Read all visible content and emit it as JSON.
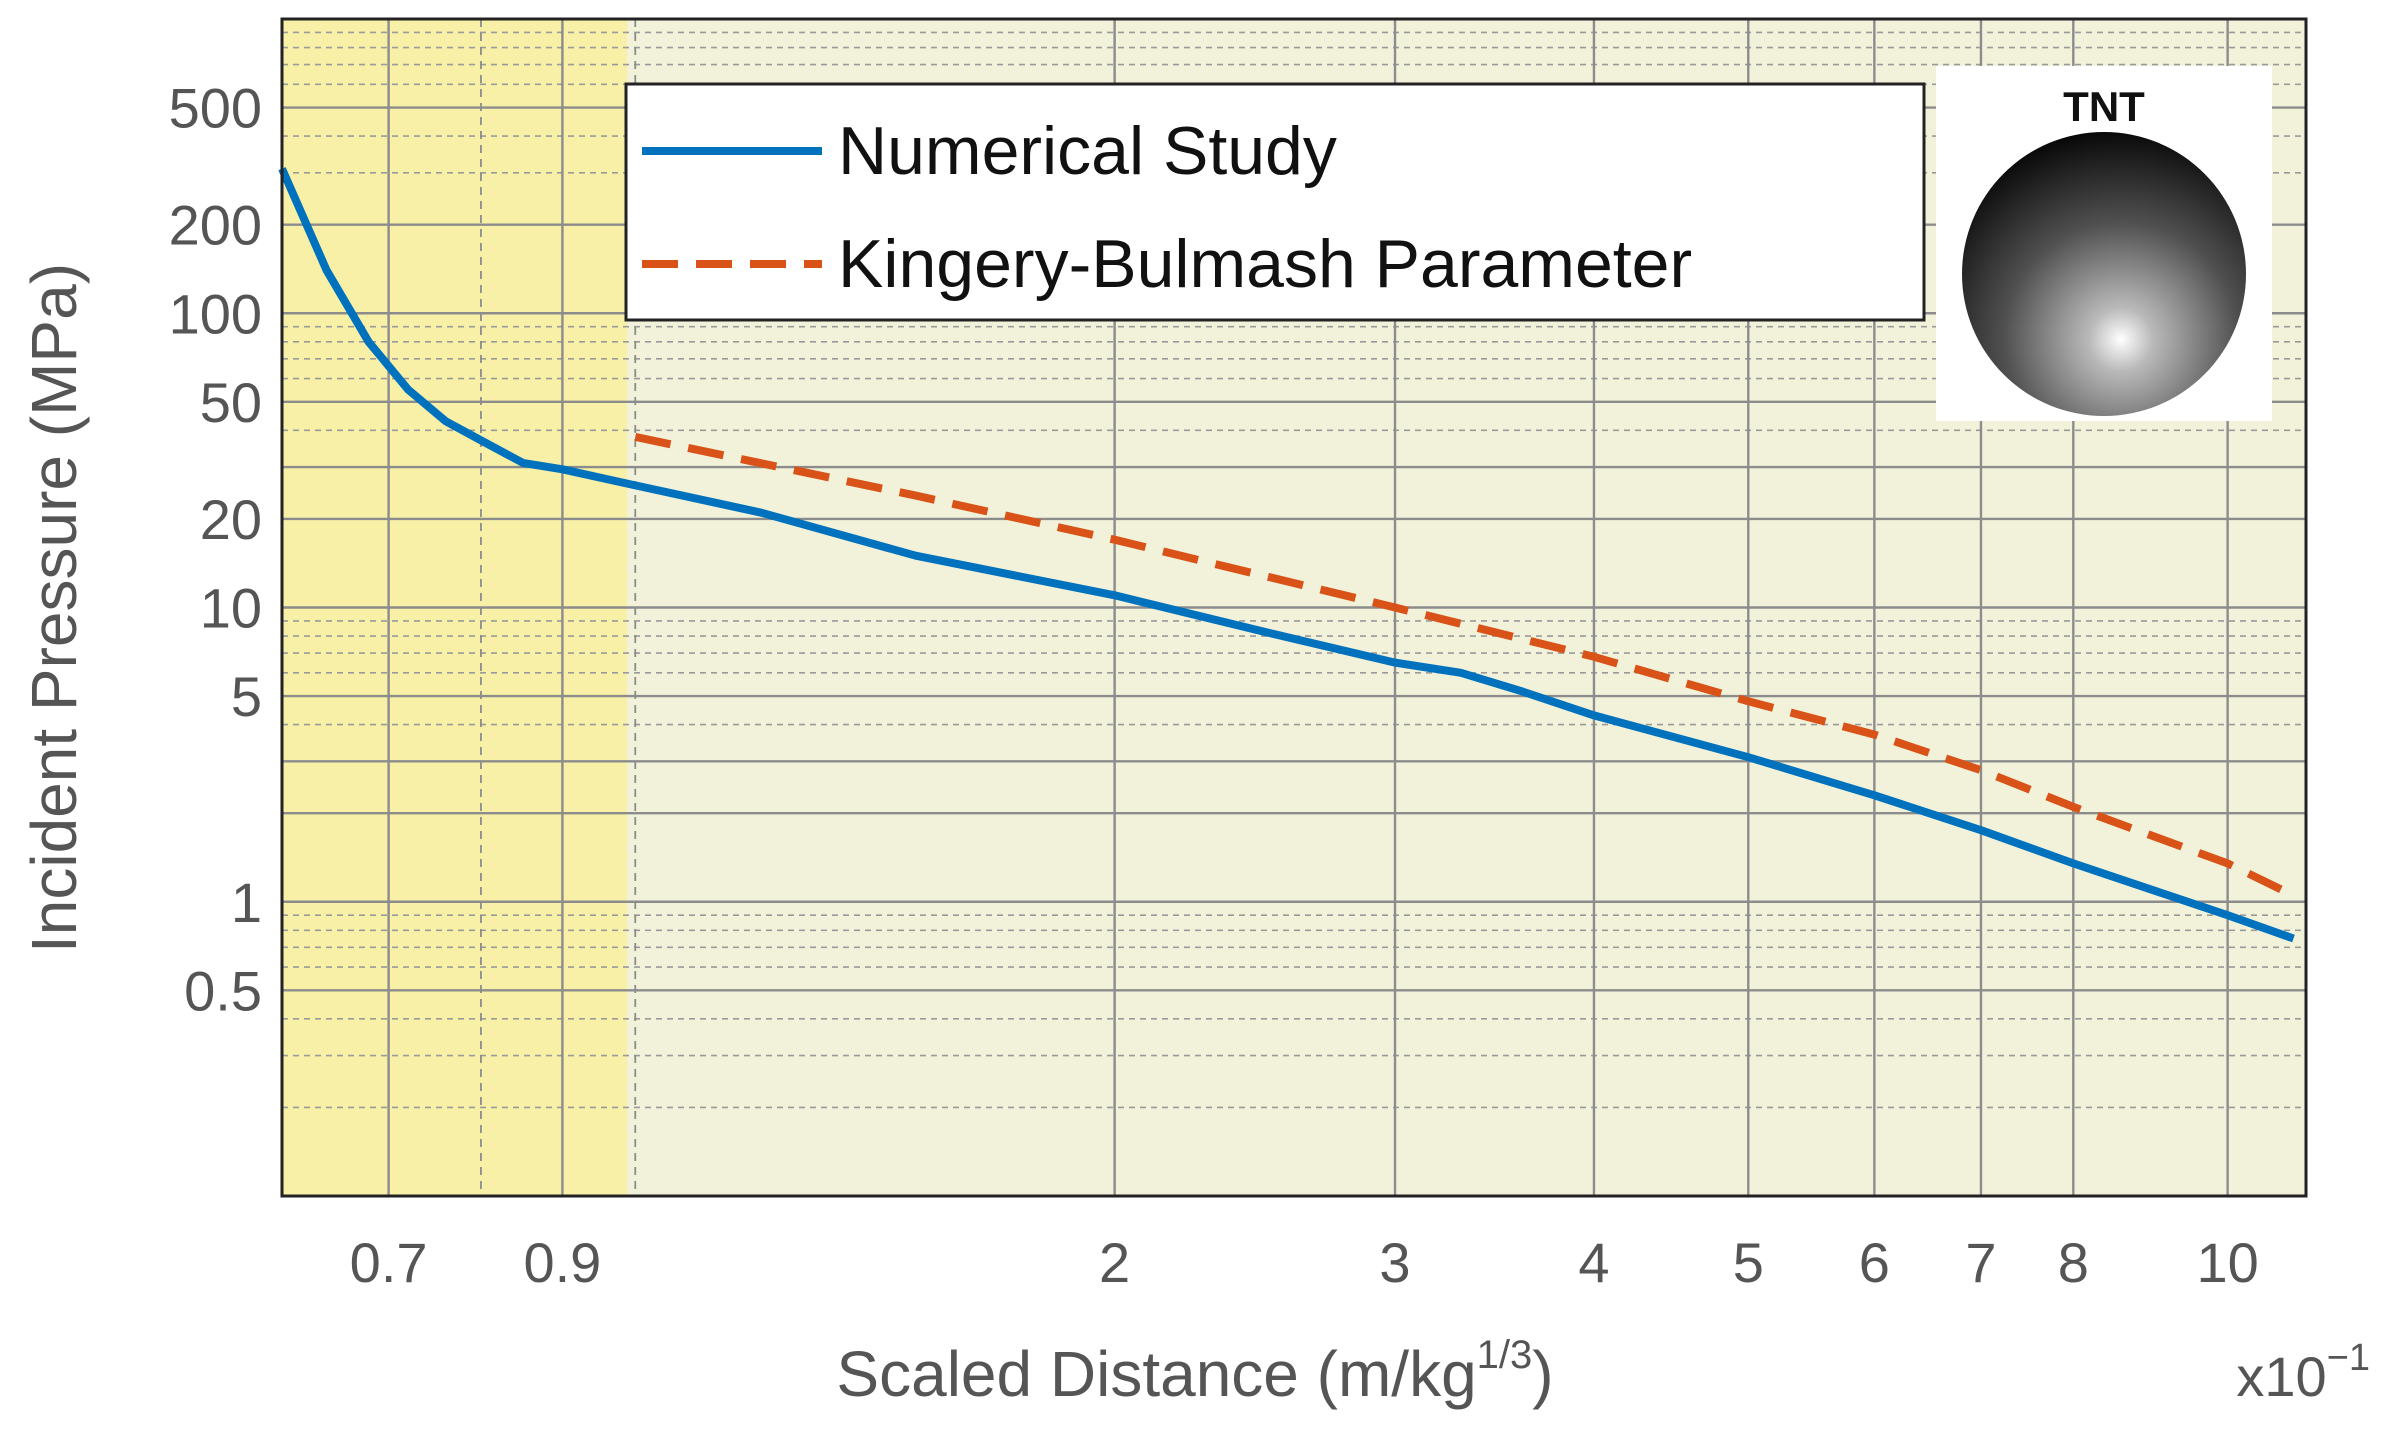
{
  "chart_data": {
    "type": "line",
    "xlabel": "Scaled Distance (m/kg",
    "xlabel_sup": "1/3",
    "xlabel_close": ")",
    "ylabel": "Incident Pressure (MPa)",
    "x_multiplier": "x10",
    "x_multiplier_exp": "−1",
    "x_scale": "log",
    "y_scale": "log",
    "xlim": [
      0.6,
      11.2
    ],
    "ylim": [
      0.1,
      1000
    ],
    "grid": true,
    "legend_position": "top-center",
    "x_tick_labels": [
      {
        "value": 0.7,
        "label": "0.7"
      },
      {
        "value": 0.9,
        "label": "0.9"
      },
      {
        "value": 2,
        "label": "2"
      },
      {
        "value": 3,
        "label": "3"
      },
      {
        "value": 4,
        "label": "4"
      },
      {
        "value": 5,
        "label": "5"
      },
      {
        "value": 6,
        "label": "6"
      },
      {
        "value": 7,
        "label": "7"
      },
      {
        "value": 8,
        "label": "8"
      },
      {
        "value": 10,
        "label": "10"
      }
    ],
    "y_tick_labels": [
      {
        "value": 0.5,
        "label": "0.5"
      },
      {
        "value": 1,
        "label": "1"
      },
      {
        "value": 5,
        "label": "5"
      },
      {
        "value": 10,
        "label": "10"
      },
      {
        "value": 20,
        "label": "20"
      },
      {
        "value": 50,
        "label": "50"
      },
      {
        "value": 100,
        "label": "100"
      },
      {
        "value": 200,
        "label": "200"
      },
      {
        "value": 500,
        "label": "500"
      }
    ],
    "highlight_region": {
      "x_start": 0.6,
      "x_end": 1.0,
      "color": "#f7f0a6"
    },
    "plot_background": "#f2f2da",
    "series": [
      {
        "name": "Numerical Study",
        "color": "#0072bd",
        "style": "solid",
        "x": [
          0.6,
          0.64,
          0.68,
          0.72,
          0.76,
          0.8,
          0.85,
          0.9,
          1.0,
          1.2,
          1.5,
          2.0,
          2.5,
          3.0,
          3.3,
          3.6,
          4.0,
          5.0,
          6.0,
          7.0,
          8.0,
          10.0,
          11.0
        ],
        "y": [
          310,
          140,
          80,
          55,
          43,
          37,
          31,
          29.5,
          26,
          21,
          15,
          11,
          8.2,
          6.5,
          6.0,
          5.2,
          4.3,
          3.1,
          2.3,
          1.75,
          1.35,
          0.9,
          0.75
        ]
      },
      {
        "name": "Kingery-Bulmash Parameter",
        "color": "#d95319",
        "style": "dashed",
        "x": [
          1.0,
          1.5,
          2.0,
          3.0,
          4.0,
          5.0,
          6.0,
          7.0,
          8.0,
          10.0,
          11.0
        ],
        "y": [
          38,
          24,
          17,
          10,
          6.8,
          4.8,
          3.7,
          2.8,
          2.1,
          1.35,
          1.05
        ]
      }
    ]
  },
  "inset": {
    "label": "TNT"
  }
}
